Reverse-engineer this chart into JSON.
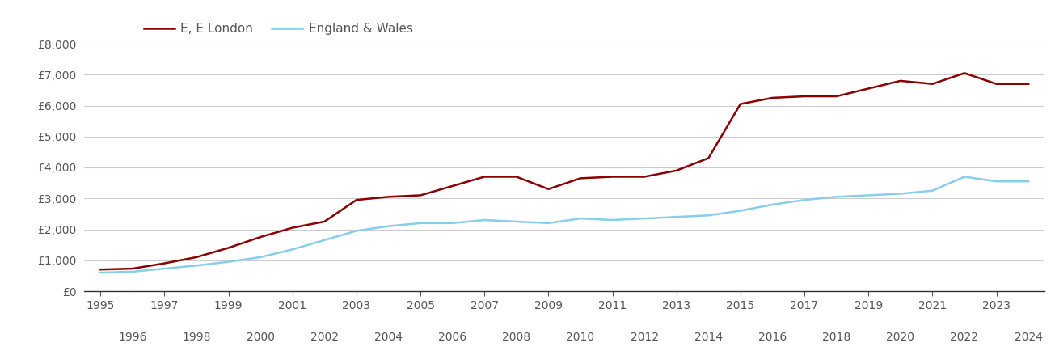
{
  "e_london": {
    "years": [
      1995,
      1996,
      1997,
      1998,
      1999,
      2000,
      2001,
      2002,
      2003,
      2004,
      2005,
      2006,
      2007,
      2008,
      2009,
      2010,
      2011,
      2012,
      2013,
      2014,
      2015,
      2016,
      2017,
      2018,
      2019,
      2020,
      2021,
      2022,
      2023,
      2024
    ],
    "values": [
      700,
      730,
      900,
      1100,
      1400,
      1750,
      2050,
      2250,
      2950,
      3050,
      3100,
      3400,
      3700,
      3700,
      3300,
      3650,
      3700,
      3700,
      3900,
      4300,
      6050,
      6250,
      6300,
      6300,
      6550,
      6800,
      6700,
      7050,
      6700,
      6700
    ]
  },
  "england_wales": {
    "years": [
      1995,
      1996,
      1997,
      1998,
      1999,
      2000,
      2001,
      2002,
      2003,
      2004,
      2005,
      2006,
      2007,
      2008,
      2009,
      2010,
      2011,
      2012,
      2013,
      2014,
      2015,
      2016,
      2017,
      2018,
      2019,
      2020,
      2021,
      2022,
      2023,
      2024
    ],
    "values": [
      600,
      630,
      730,
      830,
      950,
      1100,
      1350,
      1650,
      1950,
      2100,
      2200,
      2200,
      2300,
      2250,
      2200,
      2350,
      2300,
      2350,
      2400,
      2450,
      2600,
      2800,
      2950,
      3050,
      3100,
      3150,
      3250,
      3700,
      3550,
      3550
    ]
  },
  "e_london_color": "#8B0000",
  "england_wales_color": "#87CEEB",
  "e_london_label": "E, E London",
  "england_wales_label": "England & Wales",
  "ylim": [
    0,
    8000
  ],
  "yticks": [
    0,
    1000,
    2000,
    3000,
    4000,
    5000,
    6000,
    7000,
    8000
  ],
  "ytick_labels": [
    "£0",
    "£1,000",
    "£2,000",
    "£3,000",
    "£4,000",
    "£5,000",
    "£6,000",
    "£7,000",
    "£8,000"
  ],
  "xlim_min": 1994.5,
  "xlim_max": 2024.5,
  "background_color": "#ffffff",
  "grid_color": "#cccccc",
  "line_width": 1.8,
  "legend_fontsize": 11,
  "tick_fontsize": 10,
  "tick_color": "#555555"
}
